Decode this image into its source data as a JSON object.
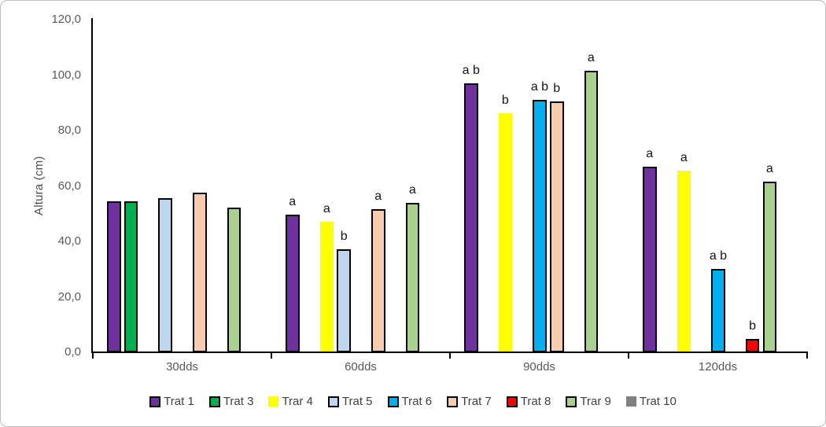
{
  "chart_data": {
    "type": "bar",
    "title": "",
    "ylabel": "Altura (cm)",
    "xlabel": "",
    "ylim": [
      0,
      120
    ],
    "ytick_step": 20,
    "ytick_labels": [
      "0,0",
      "20,0",
      "40,0",
      "60,0",
      "80,0",
      "100,0",
      "120,0"
    ],
    "categories": [
      "30dds",
      "60dds",
      "90dds",
      "120dds"
    ],
    "grid": false,
    "legend_position": "bottom",
    "annotation_note": "letters are significance group labels shown above bars",
    "series": [
      {
        "name": "Trat 1",
        "color": "#7030A0",
        "border": true,
        "values": [
          54.5,
          49.7,
          97.0,
          66.9
        ],
        "sig_labels": [
          "",
          "a",
          "a b",
          "a"
        ]
      },
      {
        "name": "Trat 3",
        "color": "#00B050",
        "border": true,
        "values": [
          54.5,
          null,
          null,
          null
        ],
        "sig_labels": [
          "",
          "",
          "",
          ""
        ]
      },
      {
        "name": "Trar 4",
        "color": "#FFFF00",
        "border": false,
        "values": [
          null,
          47.0,
          86.2,
          65.6
        ],
        "sig_labels": [
          "",
          "a",
          "b",
          "a"
        ]
      },
      {
        "name": "Trat 5",
        "color": "#BDD7EE",
        "border": true,
        "values": [
          55.7,
          37.2,
          null,
          null
        ],
        "sig_labels": [
          "",
          "b",
          "",
          ""
        ]
      },
      {
        "name": "Trat 6",
        "color": "#00B0F0",
        "border": true,
        "values": [
          null,
          null,
          91.2,
          30.2
        ],
        "sig_labels": [
          "",
          "",
          "a b",
          "a b"
        ]
      },
      {
        "name": "Trat 7",
        "color": "#F8CBAD",
        "border": true,
        "values": [
          57.5,
          51.7,
          90.5,
          null
        ],
        "sig_labels": [
          "",
          "a",
          "b",
          ""
        ]
      },
      {
        "name": "Trat 8",
        "color": "#FF0000",
        "border": true,
        "values": [
          null,
          null,
          null,
          4.7
        ],
        "sig_labels": [
          "",
          "",
          "",
          "b"
        ]
      },
      {
        "name": "Trar 9",
        "color": "#A9D18E",
        "border": true,
        "values": [
          52.3,
          54.0,
          101.5,
          61.7
        ],
        "sig_labels": [
          "",
          "a",
          "a",
          "a"
        ]
      },
      {
        "name": "Trat 10",
        "color": "#808080",
        "border": false,
        "values": [
          null,
          null,
          null,
          null
        ],
        "sig_labels": [
          "",
          "",
          "",
          ""
        ]
      }
    ]
  }
}
